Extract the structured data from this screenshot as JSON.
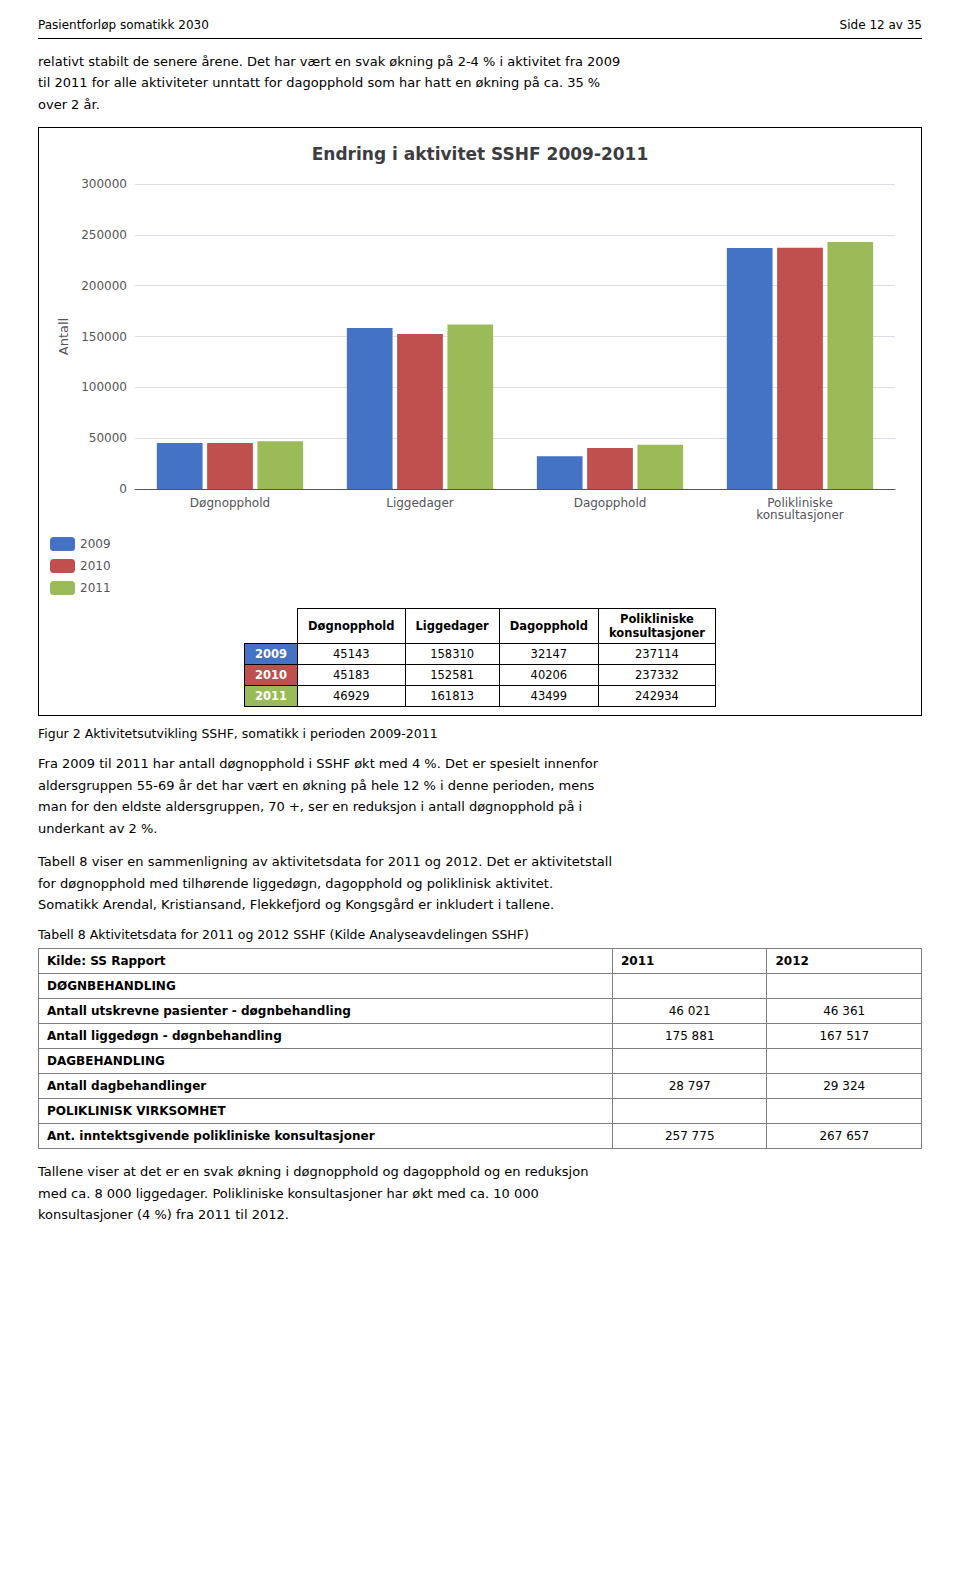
{
  "header_left": "Pasientforløp somatikk 2030",
  "header_right": "Side 12 av 35",
  "para1": "relativt stabilt de senere årene. Det har vært en svak økning på 2-4 % i aktivitet fra 2009\ntil 2011 for alle aktiviteter unntatt for dagopphold som har hatt en økning på ca. 35 %\nover 2 år.",
  "chart_data": {
    "type": "bar",
    "title": "Endring i aktivitet SSHF 2009-2011",
    "categories": [
      "Døgnopphold",
      "Liggedager",
      "Dagopphold",
      "Polikliniske\nkonsultasjoner"
    ],
    "series": [
      {
        "name": "2009",
        "color": "#4472C4",
        "values": [
          45143,
          158310,
          32147,
          237114
        ]
      },
      {
        "name": "2010",
        "color": "#C0504D",
        "values": [
          45183,
          152581,
          40206,
          237332
        ]
      },
      {
        "name": "2011",
        "color": "#9BBB59",
        "values": [
          46929,
          161813,
          43499,
          242934
        ]
      }
    ],
    "ylabel": "Antall",
    "ylim": [
      0,
      300000
    ],
    "yticks": [
      0,
      50000,
      100000,
      150000,
      200000,
      250000,
      300000
    ],
    "grid": true,
    "legend": "lower left"
  },
  "caption": "Figur 2 Aktivitetsutvikling SSHF, somatikk i perioden 2009-2011",
  "para2": "Fra 2009 til 2011 har antall døgnopphold i SSHF økt med 4 %. Det er spesielt innenfor\naldersgruppen 55-69 år det har vært en økning på hele 12 % i denne perioden, mens\nman for den eldste aldersgruppen, 70 +, ser en reduksjon i antall døgnopphold på i\nunderkant av 2 %.",
  "para3": "Tabell 8 viser en sammenligning av aktivitetsdata for 2011 og 2012. Det er aktivitetstall\nfor døgnopphold med tilhørende liggedøgn, dagopphold og poliklinisk aktivitet.\nSomatikk Arendal, Kristiansand, Flekkefjord og Kongsgård er inkludert i tallene.",
  "table_caption": "Tabell 8 Aktivitetsdata for 2011 og 2012 SSHF (Kilde Analyseavdelingen SSHF)",
  "table": {
    "col_headers": [
      "Kilde: SS Rapport",
      "2011",
      "2012"
    ],
    "rows": [
      {
        "label": "DØGNBEHANDLING"
      },
      {
        "label": "Antall utskrevne pasienter - døgnbehandling",
        "values": [
          "46 021",
          "46 361"
        ]
      },
      {
        "label": "Antall liggedøgn - døgnbehandling",
        "values": [
          "175 881",
          "167 517"
        ]
      },
      {
        "label": "DAGBEHANDLING"
      },
      {
        "label": "Antall dagbehandlinger",
        "values": [
          "28 797",
          "29 324"
        ]
      },
      {
        "label": "POLIKLINISK VIRKSOMHET"
      },
      {
        "label": "Ant. inntektsgivende polikliniske konsultasjoner",
        "values": [
          "257 775",
          "267 657"
        ]
      }
    ]
  },
  "para4": "Tallene viser at det er en svak økning i døgnopphold og dagopphold og en reduksjon\nmed ca. 8 000 liggedager. Polikliniske konsultasjoner har økt med ca. 10 000\nkonsultasjoner (4 %) fra 2011 til 2012."
}
